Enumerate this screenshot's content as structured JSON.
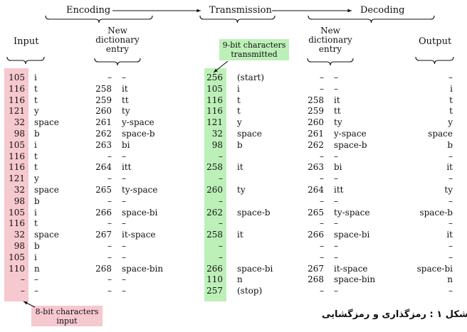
{
  "stages": {
    "encoding": "Encoding",
    "transmission": "Transmission",
    "decoding": "Decoding"
  },
  "headers": {
    "input": "Input",
    "enc_dict": [
      "New",
      "dictionary",
      "entry"
    ],
    "dec_dict": [
      "New",
      "dictionary",
      "entry"
    ],
    "output": "Output"
  },
  "callouts": {
    "nine_bit": [
      "9-bit characters",
      "transmitted"
    ],
    "eight_bit": [
      "8-bit characters",
      "input"
    ]
  },
  "rows": [
    {
      "in_code": "105",
      "in_char": "i",
      "enc_code": "–",
      "enc_entry": "–",
      "tx_code": "256",
      "tx_text": "(start)",
      "dec_code": "–",
      "dec_entry": "–",
      "out": "–"
    },
    {
      "in_code": "116",
      "in_char": "t",
      "enc_code": "258",
      "enc_entry": "it",
      "tx_code": "105",
      "tx_text": "i",
      "dec_code": "–",
      "dec_entry": "–",
      "out": "i"
    },
    {
      "in_code": "116",
      "in_char": "t",
      "enc_code": "259",
      "enc_entry": "tt",
      "tx_code": "116",
      "tx_text": "t",
      "dec_code": "258",
      "dec_entry": "it",
      "out": "t"
    },
    {
      "in_code": "121",
      "in_char": "y",
      "enc_code": "260",
      "enc_entry": "ty",
      "tx_code": "116",
      "tx_text": "t",
      "dec_code": "259",
      "dec_entry": "tt",
      "out": "t"
    },
    {
      "in_code": "32",
      "in_char": "space",
      "enc_code": "261",
      "enc_entry": "y-space",
      "tx_code": "121",
      "tx_text": "y",
      "dec_code": "260",
      "dec_entry": "ty",
      "out": "y"
    },
    {
      "in_code": "98",
      "in_char": "b",
      "enc_code": "262",
      "enc_entry": "space-b",
      "tx_code": "32",
      "tx_text": "space",
      "dec_code": "261",
      "dec_entry": "y-space",
      "out": "space"
    },
    {
      "in_code": "105",
      "in_char": "i",
      "enc_code": "263",
      "enc_entry": "bi",
      "tx_code": "98",
      "tx_text": "b",
      "dec_code": "262",
      "dec_entry": "space-b",
      "out": "b"
    },
    {
      "in_code": "116",
      "in_char": "t",
      "enc_code": "–",
      "enc_entry": "–",
      "tx_code": "–",
      "tx_text": "",
      "dec_code": "–",
      "dec_entry": "–",
      "out": "–"
    },
    {
      "in_code": "116",
      "in_char": "t",
      "enc_code": "264",
      "enc_entry": "itt",
      "tx_code": "258",
      "tx_text": "it",
      "dec_code": "263",
      "dec_entry": "bi",
      "out": "it"
    },
    {
      "in_code": "121",
      "in_char": "y",
      "enc_code": "–",
      "enc_entry": "–",
      "tx_code": "–",
      "tx_text": "",
      "dec_code": "–",
      "dec_entry": "–",
      "out": "–"
    },
    {
      "in_code": "32",
      "in_char": "space",
      "enc_code": "265",
      "enc_entry": "ty-space",
      "tx_code": "260",
      "tx_text": "ty",
      "dec_code": "264",
      "dec_entry": "itt",
      "out": "ty"
    },
    {
      "in_code": "98",
      "in_char": "b",
      "enc_code": "–",
      "enc_entry": "–",
      "tx_code": "–",
      "tx_text": "",
      "dec_code": "–",
      "dec_entry": "–",
      "out": "–"
    },
    {
      "in_code": "105",
      "in_char": "i",
      "enc_code": "266",
      "enc_entry": "space-bi",
      "tx_code": "262",
      "tx_text": "space-b",
      "dec_code": "265",
      "dec_entry": "ty-space",
      "out": "space-b"
    },
    {
      "in_code": "116",
      "in_char": "t",
      "enc_code": "–",
      "enc_entry": "–",
      "tx_code": "–",
      "tx_text": "",
      "dec_code": "–",
      "dec_entry": "–",
      "out": "–"
    },
    {
      "in_code": "32",
      "in_char": "space",
      "enc_code": "267",
      "enc_entry": "it-space",
      "tx_code": "258",
      "tx_text": "it",
      "dec_code": "266",
      "dec_entry": "space-bi",
      "out": "it"
    },
    {
      "in_code": "98",
      "in_char": "b",
      "enc_code": "–",
      "enc_entry": "–",
      "tx_code": "–",
      "tx_text": "",
      "dec_code": "–",
      "dec_entry": "–",
      "out": "–"
    },
    {
      "in_code": "105",
      "in_char": "i",
      "enc_code": "–",
      "enc_entry": "–",
      "tx_code": "–",
      "tx_text": "",
      "dec_code": "–",
      "dec_entry": "–",
      "out": "–"
    },
    {
      "in_code": "110",
      "in_char": "n",
      "enc_code": "268",
      "enc_entry": "space-bin",
      "tx_code": "266",
      "tx_text": "space-bi",
      "dec_code": "267",
      "dec_entry": "it-space",
      "out": "space-bi"
    },
    {
      "in_code": "–",
      "in_char": "–",
      "enc_code": "–",
      "enc_entry": "–",
      "tx_code": "110",
      "tx_text": "n",
      "dec_code": "268",
      "dec_entry": "space-bin",
      "out": "n"
    },
    {
      "in_code": "–",
      "in_char": "–",
      "enc_code": "–",
      "enc_entry": "–",
      "tx_code": "257",
      "tx_text": "(stop)",
      "dec_code": "–",
      "dec_entry": "–",
      "out": "–"
    }
  ],
  "caption": "شکل ۱ : رمزگذاری و رمزگشایی",
  "colors": {
    "input_band": "#f6c8cf",
    "transmission_band": "#bdf0b8"
  }
}
